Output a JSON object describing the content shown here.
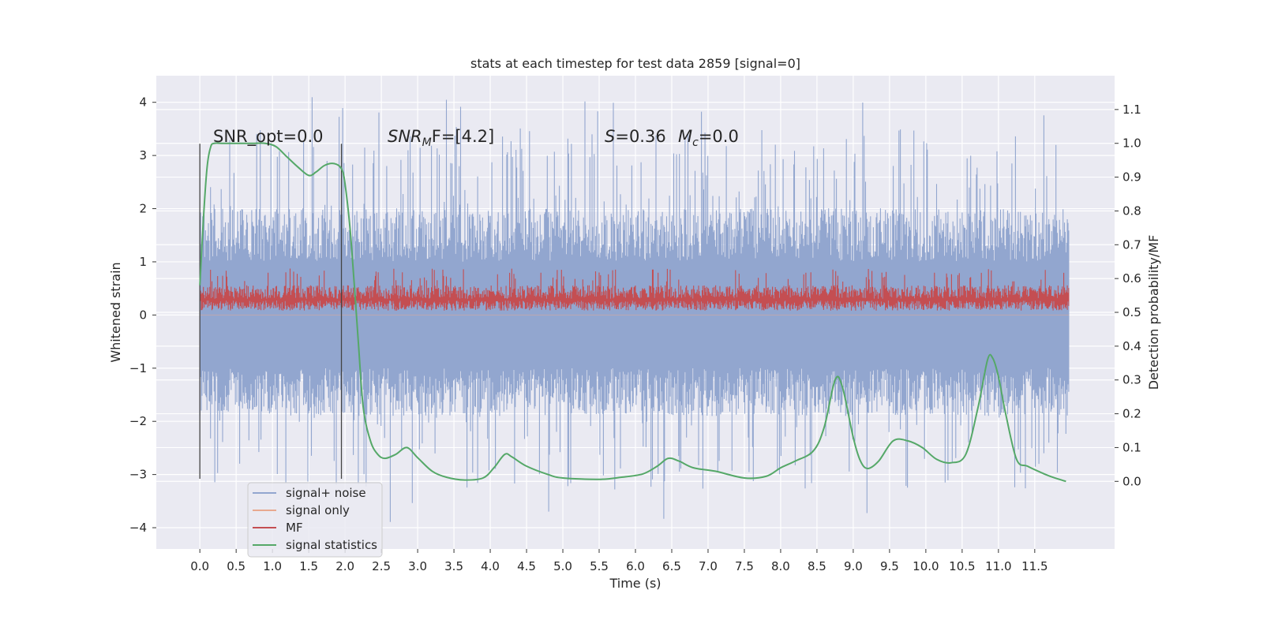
{
  "chart_data": {
    "type": "line",
    "title": "stats at each timestep for test data 2859 [signal=0]",
    "xlabel": "Time (s)",
    "ylabel_left": "Whitened strain",
    "ylabel_right": "Detection probability/MF",
    "xlim": [
      -0.6,
      12.6
    ],
    "ylim_left": [
      -4.4,
      4.5
    ],
    "ylim_right": [
      -0.2,
      1.2
    ],
    "x_ticks": [
      0.0,
      0.5,
      1.0,
      1.5,
      2.0,
      2.5,
      3.0,
      3.5,
      4.0,
      4.5,
      5.0,
      5.5,
      6.0,
      6.5,
      7.0,
      7.5,
      8.0,
      8.5,
      9.0,
      9.5,
      10.0,
      10.5,
      11.0,
      11.5
    ],
    "x_tick_labels": [
      "0.0",
      "0.5",
      "1.0",
      "1.5",
      "2.0",
      "2.5",
      "3.0",
      "3.5",
      "4.0",
      "4.5",
      "5.0",
      "5.5",
      "6.0",
      "6.5",
      "7.0",
      "7.5",
      "8.0",
      "8.5",
      "9.0",
      "9.5",
      "10.0",
      "10.5",
      "11.0",
      "11.5"
    ],
    "y_left_ticks": [
      -4,
      -3,
      -2,
      -1,
      0,
      1,
      2,
      3,
      4
    ],
    "y_left_tick_labels": [
      "−4",
      "−3",
      "−2",
      "−1",
      "0",
      "1",
      "2",
      "3",
      "4"
    ],
    "y_right_ticks": [
      0.0,
      0.1,
      0.2,
      0.3,
      0.4,
      0.5,
      0.6,
      0.7,
      0.8,
      0.9,
      1.0,
      1.1
    ],
    "y_right_tick_labels": [
      "0.0",
      "0.1",
      "0.2",
      "0.3",
      "0.4",
      "0.5",
      "0.6",
      "0.7",
      "0.8",
      "0.9",
      "1.0",
      "1.1"
    ],
    "grid": true,
    "legend_position": "lower-left",
    "annotations": {
      "snr_opt": "SNR_opt=0.0",
      "snr_mf_main": "SNR",
      "snr_mf_sub": "M",
      "snr_mf_rest": "F=[4.2]",
      "s_main": "S",
      "s_rest": "=0.36",
      "mc_main": "M",
      "mc_sub": "c",
      "mc_rest": "=0.0"
    },
    "vertical_markers_x": [
      0.0,
      1.95
    ],
    "noise_band": {
      "x_range": [
        0.0,
        11.97
      ],
      "typical_range": [
        -1.9,
        2.0
      ],
      "extreme_range": [
        -3.9,
        4.1
      ]
    },
    "mf_band": {
      "x_range": [
        0.0,
        11.97
      ],
      "range_right_axis": [
        0.5,
        0.6
      ]
    },
    "series": [
      {
        "name": "signal+ noise",
        "color": "#92a6cf",
        "axis": "left",
        "style": "dense_noise"
      },
      {
        "name": "signal only",
        "color": "#e8a98f",
        "axis": "left",
        "style": "flat_zero"
      },
      {
        "name": "MF",
        "color": "#c44e52",
        "axis": "right",
        "style": "dense_noise"
      },
      {
        "name": "signal statistics",
        "color": "#55a868",
        "axis": "right",
        "x": [
          0.0,
          0.05,
          0.1,
          0.15,
          0.2,
          0.3,
          0.5,
          0.75,
          0.9,
          1.05,
          1.2,
          1.35,
          1.5,
          1.6,
          1.72,
          1.85,
          1.95,
          2.0,
          2.08,
          2.18,
          2.25,
          2.35,
          2.45,
          2.55,
          2.7,
          2.85,
          3.0,
          3.2,
          3.4,
          3.65,
          3.9,
          4.05,
          4.2,
          4.3,
          4.5,
          4.8,
          5.0,
          5.5,
          5.8,
          6.1,
          6.3,
          6.45,
          6.6,
          6.8,
          7.1,
          7.5,
          7.8,
          8.0,
          8.2,
          8.45,
          8.6,
          8.75,
          8.85,
          9.0,
          9.1,
          9.2,
          9.35,
          9.55,
          9.75,
          9.95,
          10.15,
          10.35,
          10.55,
          10.72,
          10.85,
          10.92,
          11.0,
          11.1,
          11.25,
          11.4,
          11.6,
          11.75,
          11.93
        ],
        "values": [
          0.58,
          0.78,
          0.93,
          0.99,
          1.0,
          1.0,
          1.0,
          1.0,
          1.0,
          0.99,
          0.96,
          0.93,
          0.905,
          0.915,
          0.935,
          0.94,
          0.925,
          0.88,
          0.72,
          0.42,
          0.22,
          0.12,
          0.08,
          0.068,
          0.08,
          0.1,
          0.07,
          0.03,
          0.012,
          0.004,
          0.01,
          0.04,
          0.08,
          0.072,
          0.045,
          0.02,
          0.01,
          0.006,
          0.012,
          0.022,
          0.045,
          0.068,
          0.06,
          0.04,
          0.03,
          0.01,
          0.015,
          0.04,
          0.06,
          0.09,
          0.16,
          0.3,
          0.28,
          0.13,
          0.06,
          0.038,
          0.06,
          0.12,
          0.12,
          0.1,
          0.065,
          0.055,
          0.08,
          0.22,
          0.36,
          0.365,
          0.31,
          0.2,
          0.065,
          0.045,
          0.025,
          0.012,
          0.0
        ]
      }
    ]
  }
}
